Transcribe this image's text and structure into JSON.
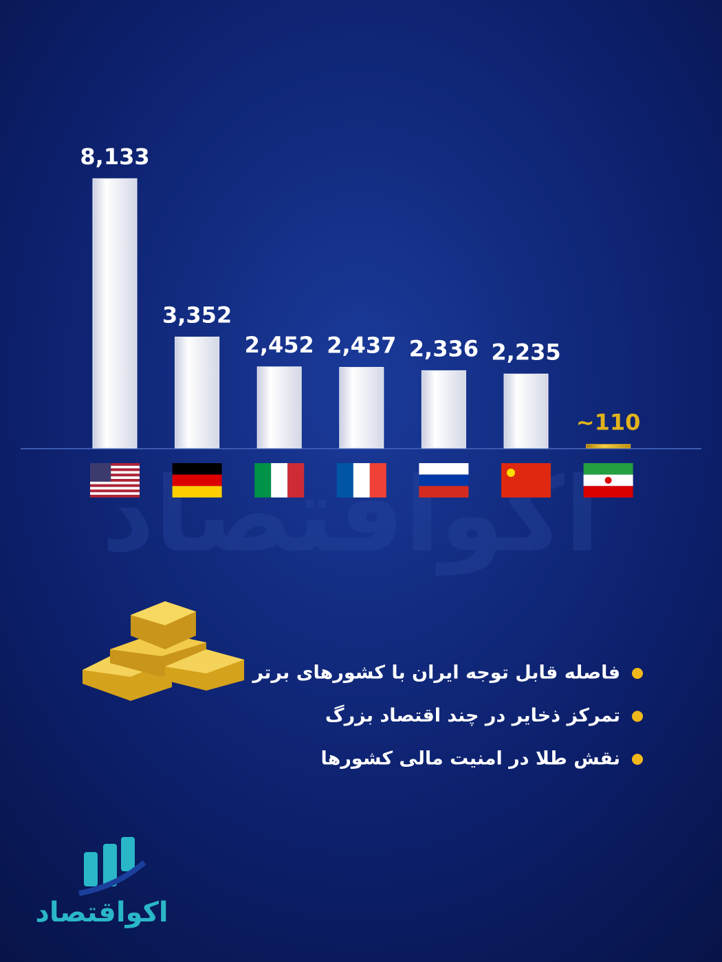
{
  "chart_data": {
    "type": "bar",
    "categories": [
      null,
      null,
      null,
      null,
      null,
      null,
      null
    ],
    "values": [
      8133,
      3352,
      2452,
      2437,
      2336,
      2235,
      110
    ],
    "value_labels": [
      "8,133",
      "3,352",
      "2,452",
      "2,437",
      "2,336",
      "2,235",
      "~110"
    ],
    "colors": [
      "#eceef6",
      "#eceef6",
      "#eceef6",
      "#eceef6",
      "#eceef6",
      "#eceef6",
      "#e2b31c"
    ]
  },
  "bullets": [
    "فاصله قابل توجه ایران با کشورهای برتر",
    "تمرکز ذخایر در چند اقتصاد بزرگ",
    "نقش طلا در امنیت مالی کشورها"
  ],
  "logo": {
    "text": "اکواقتصاد"
  }
}
